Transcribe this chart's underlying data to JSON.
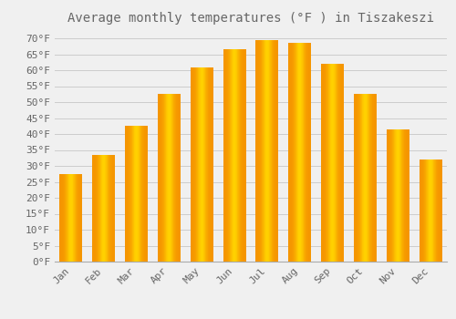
{
  "title": "Average monthly temperatures (°F ) in Tiszakeszi",
  "months": [
    "Jan",
    "Feb",
    "Mar",
    "Apr",
    "May",
    "Jun",
    "Jul",
    "Aug",
    "Sep",
    "Oct",
    "Nov",
    "Dec"
  ],
  "values": [
    27.5,
    33.5,
    42.5,
    52.5,
    61.0,
    66.5,
    69.5,
    68.5,
    62.0,
    52.5,
    41.5,
    32.0
  ],
  "bar_color_center": "#FFB800",
  "bar_color_edge": "#F59500",
  "background_color": "#F0F0F0",
  "grid_color": "#CCCCCC",
  "text_color": "#666666",
  "ylim": [
    0,
    72
  ],
  "yticks": [
    0,
    5,
    10,
    15,
    20,
    25,
    30,
    35,
    40,
    45,
    50,
    55,
    60,
    65,
    70
  ],
  "title_fontsize": 10,
  "tick_fontsize": 8,
  "bar_width": 0.7
}
